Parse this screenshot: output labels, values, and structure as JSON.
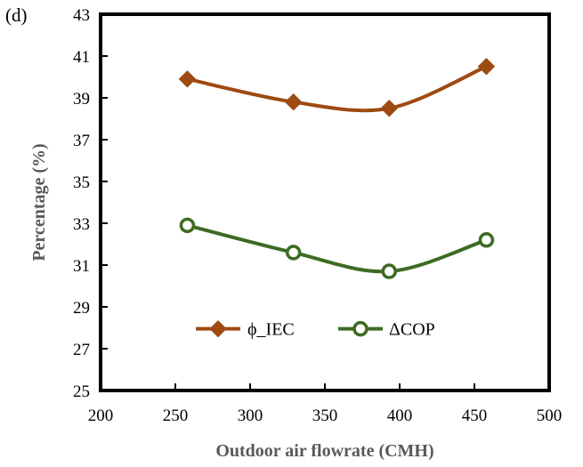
{
  "panel_label": "(d)",
  "chart_data": {
    "type": "line",
    "xlabel": "Outdoor air flowrate (CMH)",
    "ylabel": "Percentage (%)",
    "xlim": [
      200,
      500
    ],
    "ylim": [
      25,
      43
    ],
    "xticks": [
      200,
      250,
      300,
      350,
      400,
      450,
      500
    ],
    "yticks": [
      25,
      27,
      29,
      31,
      33,
      35,
      37,
      39,
      41,
      43
    ],
    "grid": false,
    "legend_position": "inside-center",
    "series": [
      {
        "name": "ϕ_IEC",
        "marker": "diamond",
        "color": "#9E4A12",
        "x": [
          258,
          329,
          393,
          458
        ],
        "y": [
          39.9,
          38.8,
          38.5,
          40.5
        ]
      },
      {
        "name": "ΔCOP",
        "marker": "open-circle",
        "color": "#3E6B23",
        "x": [
          258,
          329,
          393,
          458
        ],
        "y": [
          32.9,
          31.6,
          30.7,
          32.2
        ]
      }
    ]
  }
}
